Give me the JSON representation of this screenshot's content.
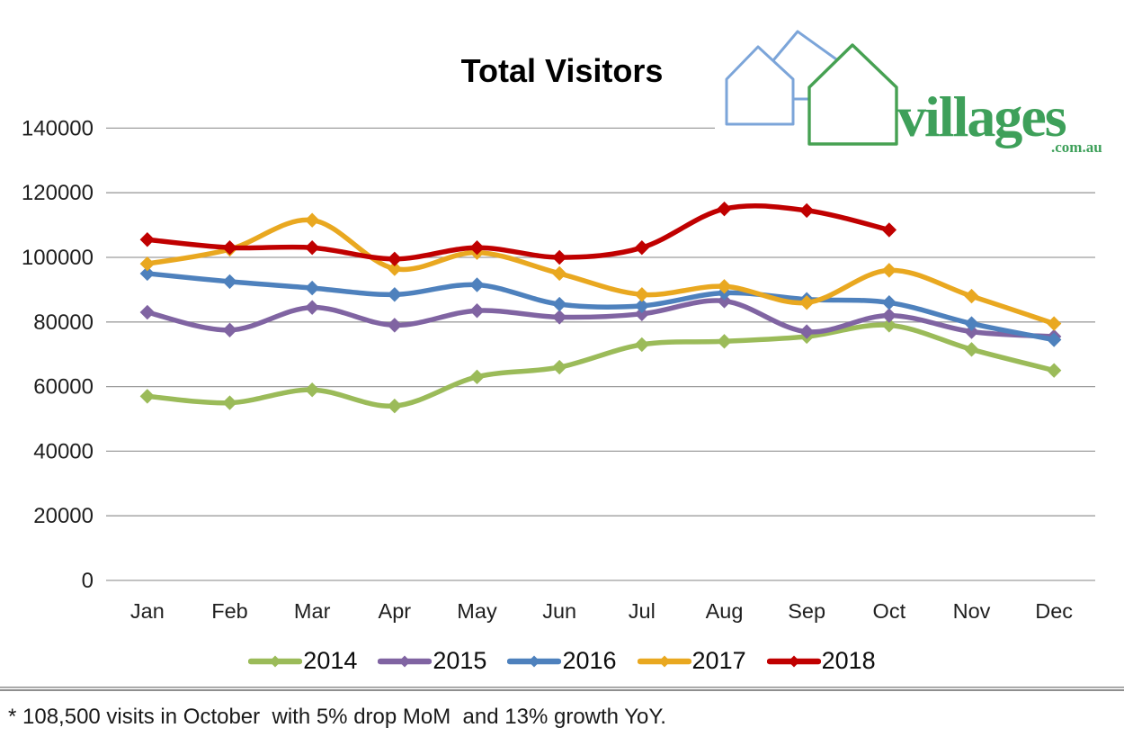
{
  "title": "Total Visitors",
  "logo": {
    "brand": "villages",
    "suffix": ".com.au",
    "house_blue": "#7ca5d9",
    "house_green": "#46a152",
    "text_color": "#3ea05a"
  },
  "footnote": "* 108,500 visits in October  with 5% drop MoM  and 13% growth YoY.",
  "chart_data": {
    "type": "line",
    "title": "Total Visitors",
    "categories": [
      "Jan",
      "Feb",
      "Mar",
      "Apr",
      "May",
      "Jun",
      "Jul",
      "Aug",
      "Sep",
      "Oct",
      "Nov",
      "Dec"
    ],
    "series": [
      {
        "name": "2014",
        "color": "#9BBB59",
        "values": [
          57000,
          55000,
          59000,
          54000,
          63000,
          66000,
          73000,
          74000,
          75500,
          79000,
          71500,
          65000
        ]
      },
      {
        "name": "2015",
        "color": "#8064A2",
        "values": [
          83000,
          77500,
          84500,
          79000,
          83500,
          81500,
          82500,
          86500,
          77000,
          82000,
          77000,
          75500
        ]
      },
      {
        "name": "2016",
        "color": "#4E81BD",
        "values": [
          95000,
          92500,
          90500,
          88500,
          91500,
          85500,
          85000,
          89000,
          87000,
          86000,
          79500,
          74500
        ]
      },
      {
        "name": "2017",
        "color": "#E9A820",
        "values": [
          98000,
          102500,
          111500,
          96500,
          101500,
          95000,
          88500,
          91000,
          86000,
          96000,
          88000,
          79500
        ]
      },
      {
        "name": "2018",
        "color": "#C00000",
        "values": [
          105500,
          103000,
          103000,
          99500,
          103000,
          100000,
          103000,
          115000,
          114500,
          108500,
          null,
          null
        ]
      }
    ],
    "xlabel": "",
    "ylabel": "",
    "ylim": [
      0,
      140000
    ],
    "ytick_step": 20000,
    "ytick_labels": [
      "0",
      "20000",
      "40000",
      "60000",
      "80000",
      "100000",
      "120000",
      "140000"
    ],
    "grid": true,
    "gridline_color": "#9e9e9e",
    "axis_label_color": "#1f1f1f",
    "legend_position": "bottom",
    "smooth": true,
    "marker": "diamond",
    "annotation": "* 108,500 visits in October  with 5% drop MoM  and 13% growth YoY."
  }
}
